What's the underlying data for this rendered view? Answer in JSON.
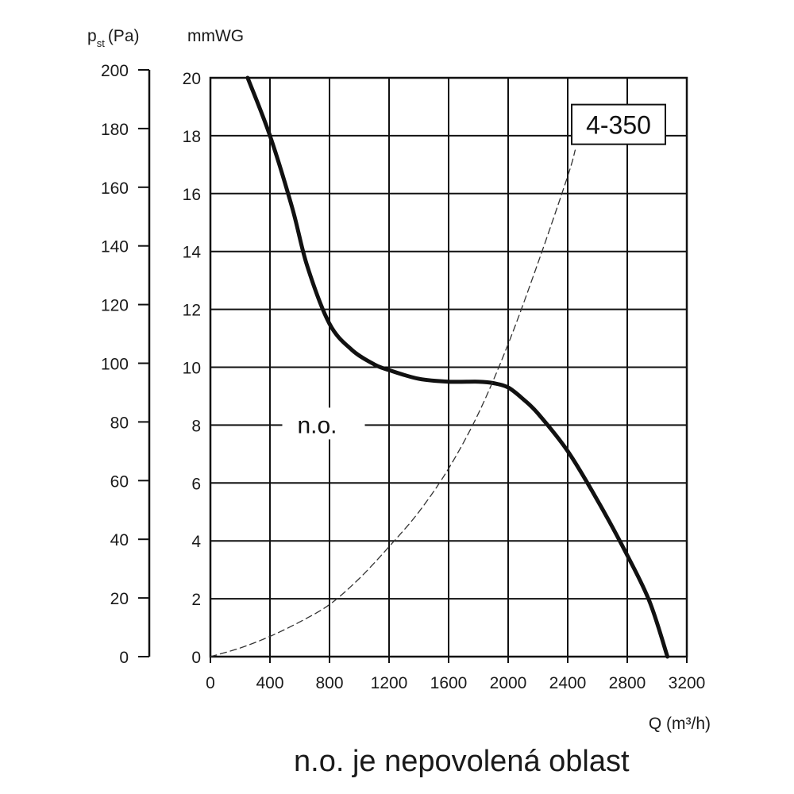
{
  "chart_data": {
    "type": "line",
    "title": "",
    "xlabel": "Q (m³/h)",
    "ylabel_primary": "(Pa)",
    "ylabel_primary_symbol": "p",
    "ylabel_primary_subscript": "st",
    "ylabel_secondary": "mmWG",
    "xlim": [
      0,
      3200
    ],
    "ylim_mmwg": [
      0,
      20
    ],
    "ylim_pa": [
      0,
      200
    ],
    "x_ticks": [
      0,
      400,
      800,
      1200,
      1600,
      2000,
      2400,
      2800,
      3200
    ],
    "y_ticks_mmwg": [
      0,
      2,
      4,
      6,
      8,
      10,
      12,
      14,
      16,
      18,
      20
    ],
    "y_ticks_pa": [
      0,
      20,
      40,
      60,
      80,
      100,
      120,
      140,
      160,
      180,
      200
    ],
    "grid": true,
    "series": [
      {
        "name": "4-350",
        "style": "solid",
        "color": "#111111",
        "x": [
          250,
          400,
          550,
          650,
          800,
          950,
          1100,
          1200,
          1400,
          1600,
          1800,
          1900,
          2000,
          2100,
          2200,
          2400,
          2600,
          2800,
          2950,
          3070
        ],
        "y": [
          20,
          18,
          15.5,
          13.5,
          11.5,
          10.6,
          10.1,
          9.9,
          9.6,
          9.5,
          9.5,
          9.45,
          9.3,
          8.9,
          8.4,
          7.1,
          5.4,
          3.5,
          1.9,
          0
        ]
      },
      {
        "style": "dashed",
        "color": "#333333",
        "x": [
          0,
          200,
          400,
          600,
          800,
          1000,
          1200,
          1400,
          1600,
          1800,
          2000,
          2200,
          2400,
          2450
        ],
        "y": [
          0,
          0.3,
          0.7,
          1.2,
          1.8,
          2.7,
          3.8,
          5.0,
          6.5,
          8.4,
          10.8,
          13.6,
          16.6,
          17.5
        ]
      }
    ],
    "annotations": [
      {
        "text": "n.o.",
        "x": 760,
        "y": 8
      },
      {
        "text": "4-350",
        "x": 2800,
        "y": 18.5,
        "boxed": true
      }
    ]
  },
  "footnote": "n.o. je nepovolená oblast"
}
